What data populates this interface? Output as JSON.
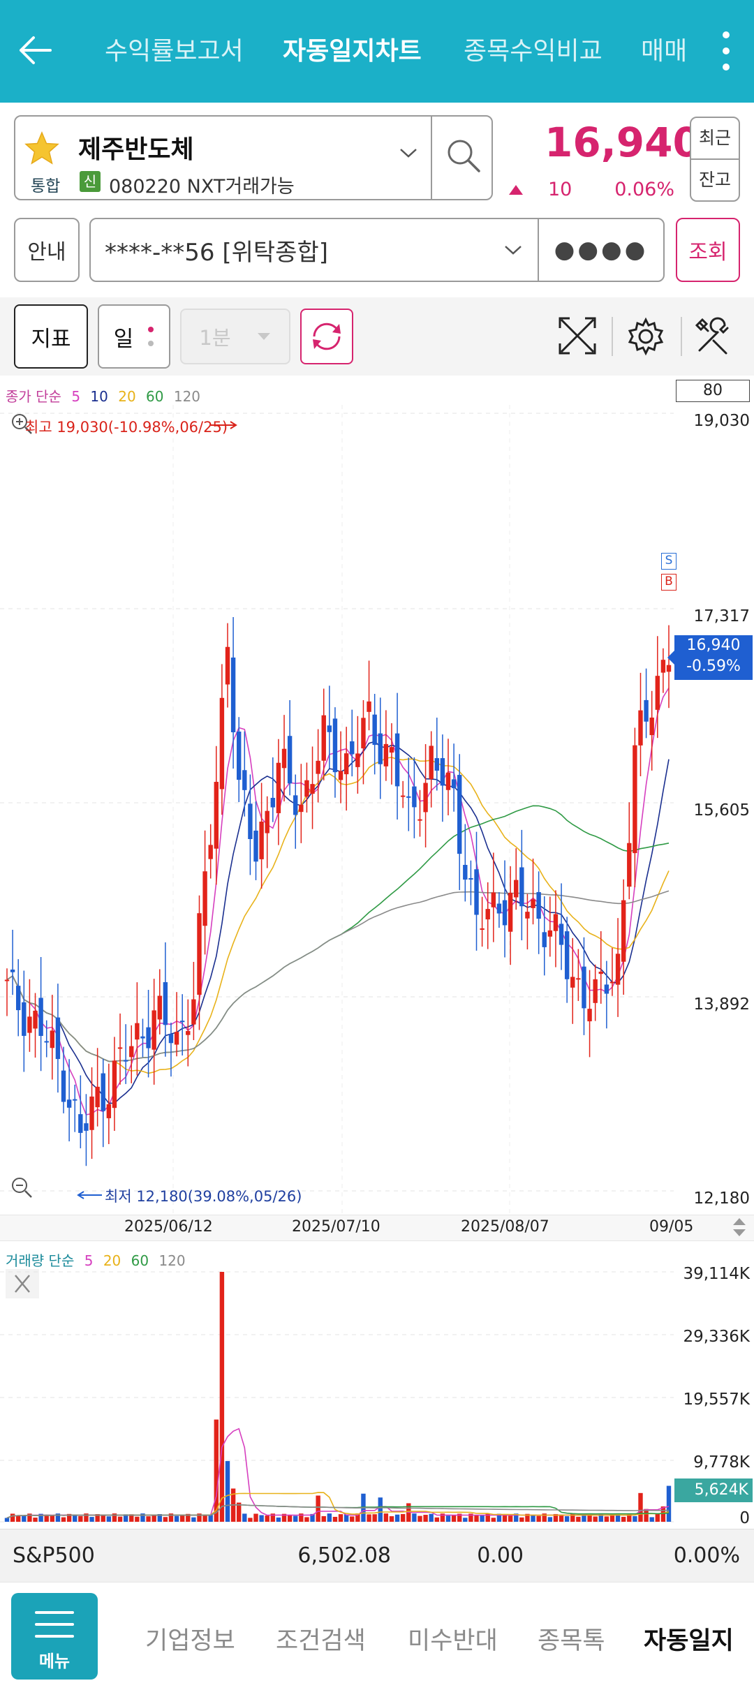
{
  "header": {
    "tabs": [
      {
        "label": "수익률보고서",
        "active": false
      },
      {
        "label": "자동일지차트",
        "active": true
      },
      {
        "label": "종목수익비교",
        "active": false
      },
      {
        "label": "매매",
        "active": false
      }
    ]
  },
  "stock": {
    "name": "제주반도체",
    "market_badge": "통합",
    "credit_badge": "신",
    "code_text": "080220 NXT거래가능",
    "price": "16,940",
    "change": "10",
    "change_pct": "0.06%",
    "recent_button": "최근",
    "balance_button": "잔고"
  },
  "account": {
    "guide_button": "안내",
    "account_value": "****-**56 [위탁종합]",
    "password_mask": "●●●●",
    "query_button": "조회"
  },
  "toolbar": {
    "indicator_button": "지표",
    "period_button": "일",
    "interval_select": "1분"
  },
  "price_chart": {
    "legend_prefix": "종가 단순",
    "ma_periods": [
      "5",
      "10",
      "20",
      "60",
      "120"
    ],
    "y_ticks": [
      "19,030",
      "17,317",
      "15,605",
      "13,892",
      "12,180"
    ],
    "count_box": "80",
    "high_marker": "최고 19,030(-10.98%,06/25)",
    "low_marker": "최저 12,180(39.08%,05/26)",
    "current_price": "16,940",
    "current_change": "-0.59%",
    "x_labels": [
      "2025/06/12",
      "2025/07/10",
      "2025/08/07",
      "09/05"
    ],
    "sell_marker": "S",
    "buy_marker": "B"
  },
  "volume_chart": {
    "legend_prefix": "거래량 단순",
    "ma_periods": [
      "5",
      "20",
      "60",
      "120"
    ],
    "y_ticks": [
      "39,114K",
      "29,336K",
      "19,557K",
      "9,778K",
      "0"
    ],
    "current_volume": "5,624K"
  },
  "ticker": {
    "name": "S&P500",
    "value": "6,502.08",
    "change": "0.00",
    "change_pct": "0.00%"
  },
  "bottom_nav": {
    "menu_label": "메뉴",
    "items": [
      {
        "label": "기업정보",
        "active": false
      },
      {
        "label": "조건검색",
        "active": false
      },
      {
        "label": "미수반대",
        "active": false
      },
      {
        "label": "종목톡",
        "active": false
      },
      {
        "label": "자동일지",
        "active": true
      }
    ]
  },
  "colors": {
    "accent": "#1bb0c8",
    "up": "#e2231a",
    "down": "#1f5fd1",
    "price_text": "#d6246e",
    "ma5": "#d63fbf",
    "ma10": "#1a2f8f",
    "ma20": "#e8b21a",
    "ma60": "#2f9a45",
    "ma120": "#8a8a8a"
  }
}
